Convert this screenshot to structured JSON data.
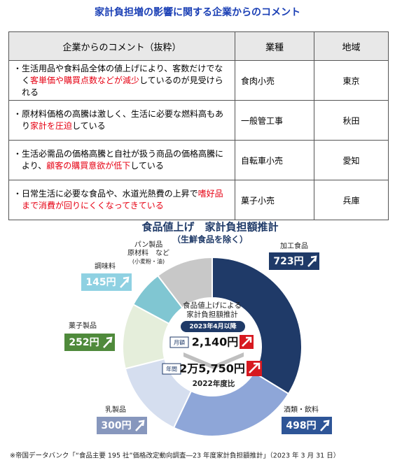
{
  "title": "家計負担増の影響に関する企業からのコメント",
  "table": {
    "header": [
      "企業からのコメント（抜粋）",
      "業種",
      "地域"
    ],
    "rows": [
      {
        "comment": [
          {
            "text": "・生活用品や食料品全体の値上げにより、客数だけでなく"
          },
          {
            "text": "客単価や購買点数などが減少",
            "color": "#e60012"
          },
          {
            "text": "しているのが見受けられる"
          }
        ],
        "industry": "食肉小売",
        "region": "東京"
      },
      {
        "comment": [
          {
            "text": "・原材料価格の高騰は激しく、生活に必要な燃料高もあり"
          },
          {
            "text": "家計を圧迫",
            "color": "#e60012"
          },
          {
            "text": "している"
          }
        ],
        "industry": "一般管工事",
        "region": "秋田"
      },
      {
        "comment": [
          {
            "text": "・生活必需品の価格高騰と自社が扱う商品の価格高騰により、"
          },
          {
            "text": "顧客の購買意欲が低下",
            "color": "#e60012"
          },
          {
            "text": "している"
          }
        ],
        "industry": "自転車小売",
        "region": "愛知"
      },
      {
        "comment": [
          {
            "text": "・日常生活に必要な食品や、水道光熱費の上昇で"
          },
          {
            "text": "嗜好品まで消費が回りにくくなってきている",
            "color": "#e60012"
          }
        ],
        "industry": "菓子小売",
        "region": "兵庫"
      }
    ]
  },
  "chart_data": {
    "type": "pie",
    "title": "食品値上げ　家計負担額推計",
    "subtitle": "（生鮮食品を除く）",
    "categories": [
      "加工食品",
      "酒類・飲料",
      "乳製品",
      "菓子製品",
      "調味料",
      [
        "パン製品",
        "原材料　など",
        "(小麦粉・油)"
      ]
    ],
    "values": [
      723,
      498,
      300,
      252,
      145,
      222
    ],
    "value_labels": [
      "723円",
      "498円",
      "300円",
      "252円",
      "145円",
      null
    ],
    "colors": [
      "#1f3a68",
      "#8ea6d8",
      "#d5deef",
      "#e5eedb",
      "#80c6d2",
      "#c8c8c8"
    ],
    "label_colors": [
      "#1f3a68",
      "#2e5597",
      "#8797bd",
      "#4f8a3b",
      "#8fd1e2",
      null
    ],
    "center": {
      "title": [
        "食品値上げによる",
        "家計負担額推計"
      ],
      "period": "2023年4月以降",
      "monthly_label": "月額",
      "monthly": "2,140円",
      "annual_label": "年間",
      "annual": "2万5,750円",
      "comparison": "2022年度比"
    }
  },
  "footnote": "※帝国データバンク「“食品主要 195 社”価格改定動向調査―23 年度家計負担額推計」（2023 年 3 月 31 日）"
}
